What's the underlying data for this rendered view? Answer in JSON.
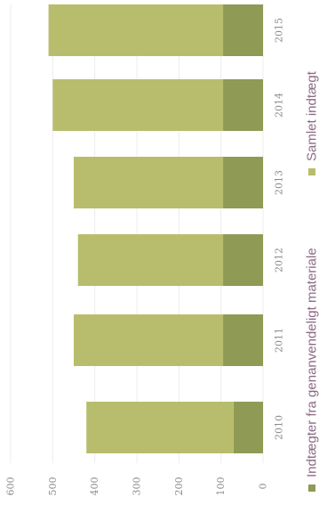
{
  "chart_data": {
    "type": "bar",
    "orientation": "horizontal-stacked (page rotated)",
    "categories": [
      "2010",
      "2011",
      "2012",
      "2013",
      "2014",
      "2015"
    ],
    "series": [
      {
        "name": "Indtægter fra genanvendeligt materiale",
        "values": [
          70,
          95,
          95,
          95,
          95,
          95
        ],
        "color": "#8f9a55"
      },
      {
        "name": "Samlet indtægt",
        "values": [
          350,
          355,
          345,
          355,
          405,
          415
        ],
        "color": "#b7bd6c"
      }
    ],
    "xlim": [
      0,
      600
    ],
    "ticks": [
      "0",
      "100",
      "200",
      "300",
      "400",
      "500",
      "600"
    ],
    "grid": true,
    "legend_position": "bottom"
  }
}
